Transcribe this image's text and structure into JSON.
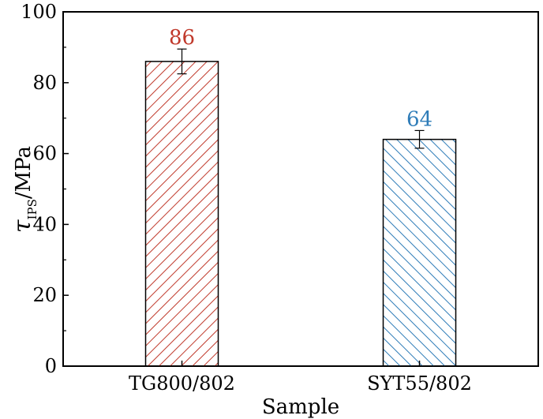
{
  "chart_data": {
    "type": "bar",
    "categories": [
      "TG800/802",
      "SYT55/802"
    ],
    "values": [
      86,
      64
    ],
    "errors": [
      3.5,
      2.5
    ],
    "data_labels": [
      "86",
      "64"
    ],
    "colors": [
      "#c0392b",
      "#2e7cb8"
    ],
    "xlabel": "Sample",
    "ylabel_main": "τ",
    "ylabel_sub": "IPS",
    "ylabel_unit": "/MPa",
    "ylim": [
      0,
      100
    ],
    "yticks": [
      0,
      20,
      40,
      60,
      80,
      100
    ],
    "grid": false,
    "legend": "none"
  }
}
